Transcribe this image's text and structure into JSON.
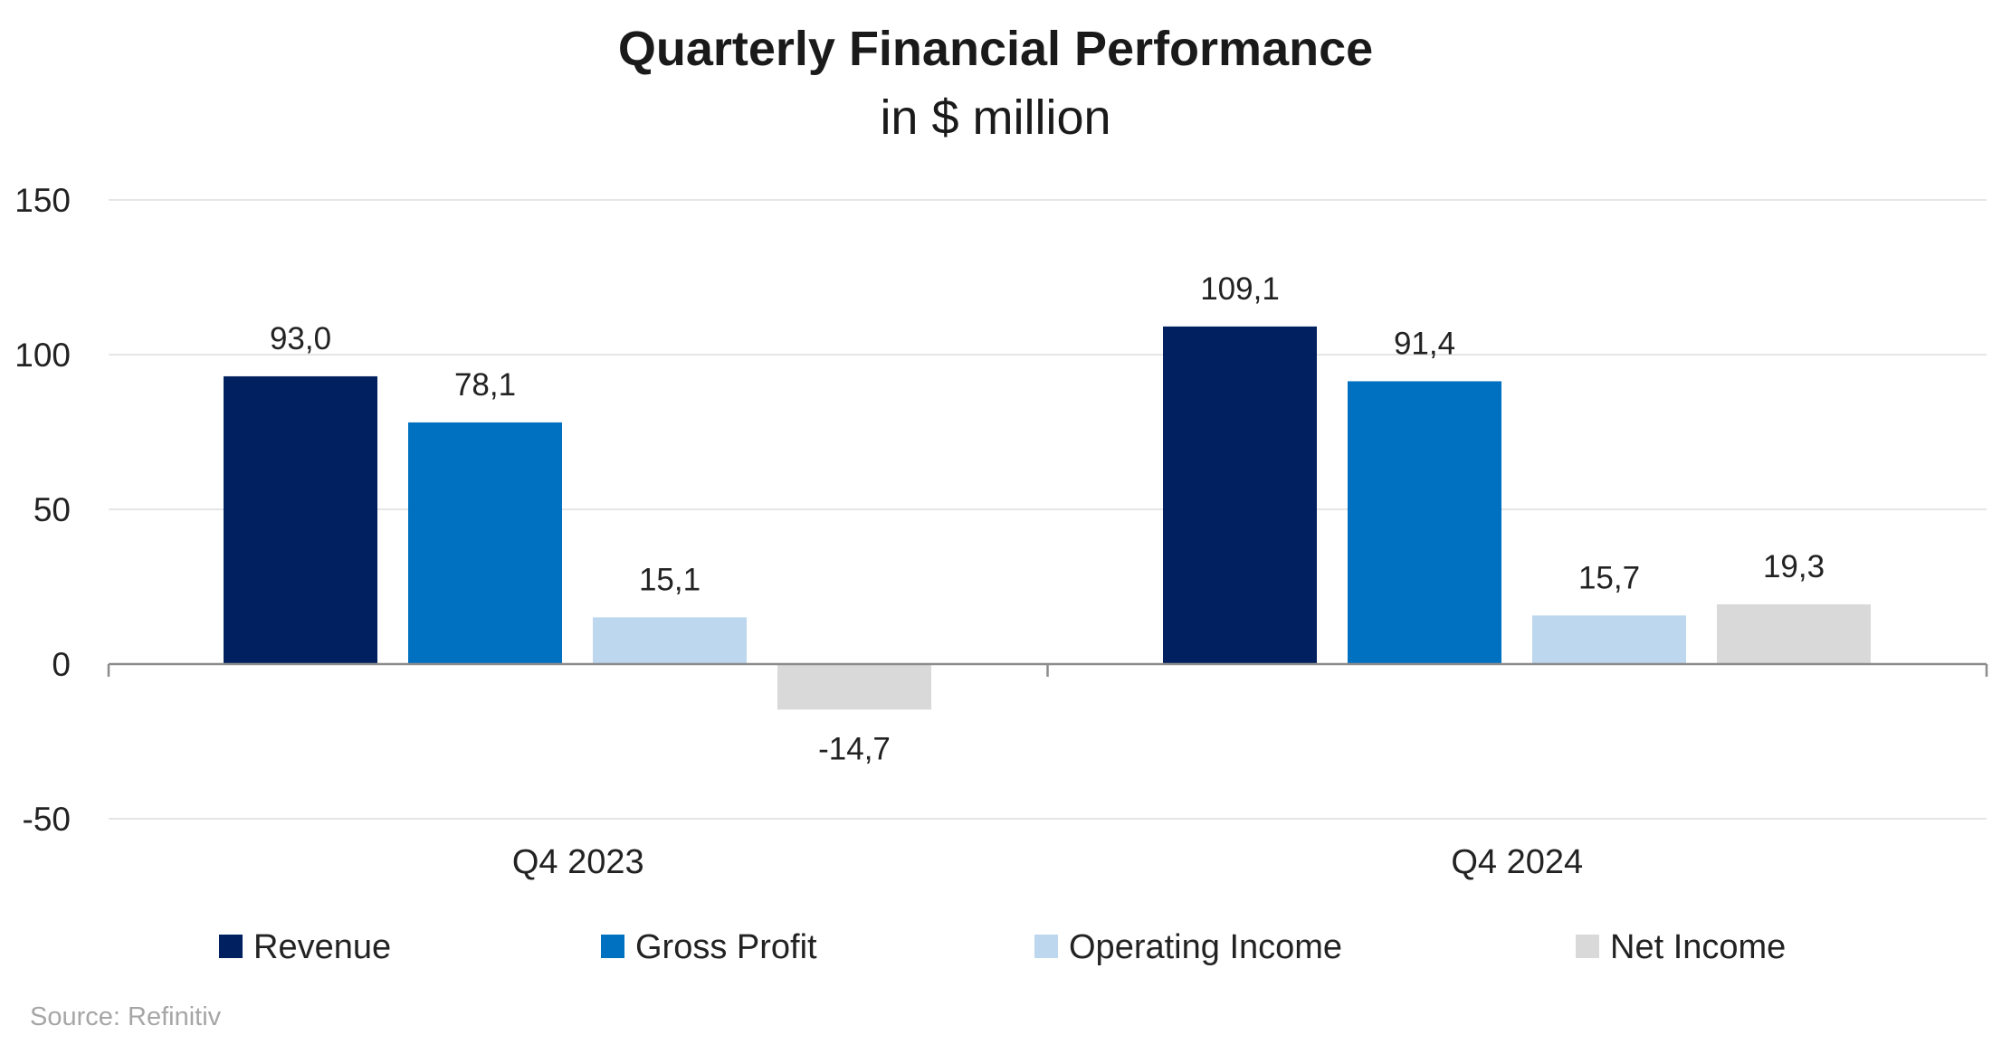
{
  "chart_data": {
    "type": "bar",
    "title": "Quarterly Financial Performance",
    "subtitle": "in $ million",
    "categories": [
      "Q4 2023",
      "Q4 2024"
    ],
    "series": [
      {
        "name": "Revenue",
        "color": "#002060",
        "values": [
          93.0,
          109.1
        ],
        "labels": [
          "93,0",
          "109,1"
        ]
      },
      {
        "name": "Gross Profit",
        "color": "#0070c0",
        "values": [
          78.1,
          91.4
        ],
        "labels": [
          "78,1",
          "91,4"
        ]
      },
      {
        "name": "Operating Income",
        "color": "#bdd7ee",
        "values": [
          15.1,
          15.7
        ],
        "labels": [
          "15,1",
          "15,7"
        ]
      },
      {
        "name": "Net Income",
        "color": "#d9d9d9",
        "values": [
          -14.7,
          19.3
        ],
        "labels": [
          "-14,7",
          "19,3"
        ]
      }
    ],
    "ylim": [
      -50,
      150
    ],
    "yticks": [
      -50,
      0,
      50,
      100,
      150
    ],
    "ytick_labels": [
      "-50",
      "0",
      "50",
      "100",
      "150"
    ],
    "grid": true,
    "legend_position": "bottom",
    "source": "Source: Refinitiv"
  }
}
